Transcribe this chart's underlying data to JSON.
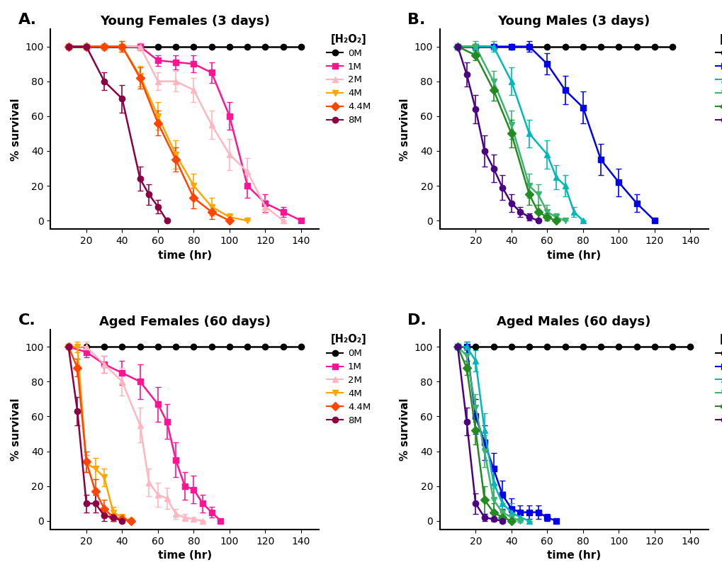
{
  "panels": [
    {
      "label": "A.",
      "title": "Young Females (3 days)",
      "series": [
        {
          "conc": "0M",
          "color": "#000000",
          "marker": "o",
          "x": [
            10,
            20,
            30,
            40,
            50,
            60,
            70,
            80,
            90,
            100,
            110,
            120,
            130,
            140
          ],
          "y": [
            100,
            100,
            100,
            100,
            100,
            100,
            100,
            100,
            100,
            100,
            100,
            100,
            100,
            100
          ],
          "yerr": [
            0,
            0,
            0,
            0,
            0,
            0,
            0,
            0,
            0,
            0,
            0,
            0,
            0,
            0
          ]
        },
        {
          "conc": "1M",
          "color": "#FF1493",
          "marker": "s",
          "x": [
            10,
            20,
            30,
            40,
            50,
            60,
            70,
            80,
            90,
            100,
            110,
            120,
            130,
            140
          ],
          "y": [
            100,
            100,
            100,
            100,
            100,
            92,
            91,
            90,
            85,
            60,
            20,
            10,
            5,
            0
          ],
          "yerr": [
            0,
            0,
            0,
            0,
            2,
            3,
            4,
            5,
            6,
            8,
            7,
            5,
            3,
            0
          ]
        },
        {
          "conc": "2M",
          "color": "#FFB6C1",
          "marker": "^",
          "x": [
            10,
            20,
            30,
            40,
            50,
            60,
            70,
            80,
            90,
            100,
            110,
            120,
            130
          ],
          "y": [
            100,
            100,
            100,
            100,
            100,
            80,
            80,
            75,
            55,
            38,
            28,
            8,
            0
          ],
          "yerr": [
            0,
            0,
            0,
            0,
            2,
            5,
            6,
            7,
            8,
            9,
            8,
            4,
            0
          ]
        },
        {
          "conc": "4M",
          "color": "#FFA500",
          "marker": "v",
          "x": [
            10,
            20,
            30,
            40,
            50,
            60,
            70,
            80,
            90,
            100,
            110
          ],
          "y": [
            100,
            100,
            100,
            100,
            83,
            60,
            38,
            20,
            8,
            2,
            0
          ],
          "yerr": [
            0,
            0,
            0,
            3,
            6,
            8,
            8,
            7,
            5,
            2,
            0
          ]
        },
        {
          "conc": "4.4M",
          "color": "#FF4500",
          "marker": "D",
          "x": [
            10,
            20,
            30,
            40,
            50,
            60,
            70,
            80,
            90,
            100
          ],
          "y": [
            100,
            100,
            100,
            100,
            82,
            56,
            35,
            13,
            5,
            0
          ],
          "yerr": [
            0,
            0,
            0,
            3,
            6,
            7,
            7,
            6,
            4,
            0
          ]
        },
        {
          "conc": "8M",
          "color": "#8B0045",
          "marker": "o",
          "x": [
            10,
            20,
            30,
            40,
            50,
            55,
            60,
            65
          ],
          "y": [
            100,
            100,
            80,
            70,
            24,
            15,
            8,
            0
          ],
          "yerr": [
            0,
            0,
            5,
            8,
            7,
            6,
            4,
            0
          ]
        }
      ]
    },
    {
      "label": "B.",
      "title": "Young Males (3 days)",
      "series": [
        {
          "conc": "0M",
          "color": "#000000",
          "marker": "o",
          "x": [
            10,
            20,
            30,
            40,
            50,
            60,
            70,
            80,
            90,
            100,
            110,
            120,
            130
          ],
          "y": [
            100,
            100,
            100,
            100,
            100,
            100,
            100,
            100,
            100,
            100,
            100,
            100,
            100
          ],
          "yerr": [
            0,
            0,
            0,
            0,
            0,
            0,
            0,
            0,
            0,
            0,
            0,
            0,
            0
          ]
        },
        {
          "conc": "1M",
          "color": "#0000EE",
          "marker": "s",
          "x": [
            10,
            20,
            30,
            40,
            50,
            60,
            70,
            80,
            90,
            100,
            110,
            120
          ],
          "y": [
            100,
            100,
            100,
            100,
            100,
            90,
            75,
            65,
            35,
            22,
            10,
            0
          ],
          "yerr": [
            0,
            0,
            0,
            0,
            3,
            6,
            8,
            9,
            9,
            8,
            5,
            0
          ]
        },
        {
          "conc": "2M",
          "color": "#00B8B8",
          "marker": "^",
          "x": [
            10,
            20,
            30,
            40,
            50,
            60,
            65,
            70,
            75,
            80
          ],
          "y": [
            100,
            100,
            100,
            80,
            50,
            38,
            25,
            20,
            5,
            0
          ],
          "yerr": [
            0,
            0,
            3,
            8,
            8,
            8,
            7,
            6,
            3,
            0
          ]
        },
        {
          "conc": "4M",
          "color": "#3CB371",
          "marker": "v",
          "x": [
            10,
            20,
            30,
            40,
            50,
            55,
            60,
            65,
            70
          ],
          "y": [
            100,
            100,
            80,
            55,
            20,
            15,
            5,
            2,
            0
          ],
          "yerr": [
            0,
            3,
            6,
            8,
            7,
            6,
            4,
            2,
            0
          ]
        },
        {
          "conc": "4.4M",
          "color": "#228B22",
          "marker": "D",
          "x": [
            10,
            20,
            30,
            40,
            50,
            55,
            60,
            65
          ],
          "y": [
            100,
            95,
            75,
            50,
            15,
            5,
            2,
            0
          ],
          "yerr": [
            0,
            3,
            6,
            8,
            6,
            4,
            2,
            0
          ]
        },
        {
          "conc": "8M",
          "color": "#4B0082",
          "marker": "o",
          "x": [
            10,
            15,
            20,
            25,
            30,
            35,
            40,
            45,
            50,
            55
          ],
          "y": [
            100,
            84,
            64,
            40,
            30,
            19,
            10,
            5,
            2,
            0
          ],
          "yerr": [
            0,
            7,
            8,
            9,
            8,
            7,
            5,
            3,
            2,
            0
          ]
        }
      ]
    },
    {
      "label": "C.",
      "title": "Aged Females (60 days)",
      "series": [
        {
          "conc": "0M",
          "color": "#000000",
          "marker": "o",
          "x": [
            10,
            20,
            30,
            40,
            50,
            60,
            70,
            80,
            90,
            100,
            110,
            120,
            130,
            140
          ],
          "y": [
            100,
            100,
            100,
            100,
            100,
            100,
            100,
            100,
            100,
            100,
            100,
            100,
            100,
            100
          ],
          "yerr": [
            0,
            0,
            0,
            0,
            0,
            0,
            0,
            0,
            0,
            0,
            0,
            0,
            0,
            0
          ]
        },
        {
          "conc": "1M",
          "color": "#FF1493",
          "marker": "s",
          "x": [
            10,
            20,
            30,
            40,
            50,
            60,
            65,
            70,
            75,
            80,
            85,
            90,
            95
          ],
          "y": [
            100,
            97,
            90,
            85,
            80,
            67,
            57,
            35,
            20,
            18,
            10,
            5,
            0
          ],
          "yerr": [
            0,
            3,
            5,
            7,
            10,
            10,
            10,
            10,
            8,
            8,
            5,
            3,
            0
          ]
        },
        {
          "conc": "2M",
          "color": "#FFB6C1",
          "marker": "^",
          "x": [
            10,
            20,
            30,
            40,
            50,
            55,
            60,
            65,
            70,
            75,
            80,
            85
          ],
          "y": [
            100,
            100,
            90,
            80,
            55,
            22,
            15,
            13,
            4,
            2,
            1,
            0
          ],
          "yerr": [
            0,
            3,
            5,
            8,
            10,
            8,
            7,
            6,
            3,
            2,
            1,
            0
          ]
        },
        {
          "conc": "4M",
          "color": "#FFA500",
          "marker": "v",
          "x": [
            10,
            15,
            20,
            25,
            30,
            35,
            40,
            45
          ],
          "y": [
            100,
            100,
            33,
            30,
            25,
            5,
            2,
            0
          ],
          "yerr": [
            0,
            3,
            5,
            6,
            5,
            3,
            2,
            0
          ]
        },
        {
          "conc": "4.4M",
          "color": "#FF4500",
          "marker": "D",
          "x": [
            10,
            15,
            20,
            25,
            30,
            35,
            40,
            45
          ],
          "y": [
            100,
            88,
            34,
            17,
            7,
            2,
            1,
            0
          ],
          "yerr": [
            0,
            5,
            6,
            7,
            5,
            2,
            1,
            0
          ]
        },
        {
          "conc": "8M",
          "color": "#8B0045",
          "marker": "o",
          "x": [
            10,
            15,
            20,
            25,
            30,
            35,
            40
          ],
          "y": [
            100,
            63,
            10,
            10,
            3,
            2,
            0
          ],
          "yerr": [
            0,
            8,
            5,
            5,
            3,
            2,
            0
          ]
        }
      ]
    },
    {
      "label": "D.",
      "title": "Aged Males (60 days)",
      "series": [
        {
          "conc": "0M",
          "color": "#000000",
          "marker": "o",
          "x": [
            10,
            20,
            30,
            40,
            50,
            60,
            70,
            80,
            90,
            100,
            110,
            120,
            130,
            140
          ],
          "y": [
            100,
            100,
            100,
            100,
            100,
            100,
            100,
            100,
            100,
            100,
            100,
            100,
            100,
            100
          ],
          "yerr": [
            0,
            0,
            0,
            0,
            0,
            0,
            0,
            0,
            0,
            0,
            0,
            0,
            0,
            0
          ]
        },
        {
          "conc": "1M",
          "color": "#0000EE",
          "marker": "s",
          "x": [
            10,
            15,
            20,
            25,
            30,
            35,
            40,
            45,
            50,
            55,
            60,
            65
          ],
          "y": [
            100,
            100,
            60,
            45,
            30,
            15,
            7,
            5,
            5,
            5,
            2,
            0
          ],
          "yerr": [
            0,
            3,
            10,
            10,
            9,
            8,
            6,
            4,
            4,
            4,
            2,
            0
          ]
        },
        {
          "conc": "2M",
          "color": "#00B8B8",
          "marker": "^",
          "x": [
            10,
            15,
            20,
            25,
            30,
            35,
            40,
            45,
            50
          ],
          "y": [
            100,
            100,
            92,
            52,
            22,
            10,
            5,
            2,
            0
          ],
          "yerr": [
            0,
            3,
            6,
            10,
            9,
            7,
            5,
            3,
            0
          ]
        },
        {
          "conc": "4M",
          "color": "#3CB371",
          "marker": "v",
          "x": [
            10,
            15,
            20,
            25,
            30,
            35,
            40,
            45
          ],
          "y": [
            100,
            95,
            65,
            40,
            12,
            5,
            2,
            0
          ],
          "yerr": [
            0,
            3,
            8,
            9,
            7,
            5,
            3,
            0
          ]
        },
        {
          "conc": "4.4M",
          "color": "#228B22",
          "marker": "D",
          "x": [
            10,
            15,
            20,
            25,
            30,
            35,
            40
          ],
          "y": [
            100,
            88,
            52,
            12,
            5,
            2,
            0
          ],
          "yerr": [
            0,
            4,
            8,
            8,
            5,
            3,
            0
          ]
        },
        {
          "conc": "8M",
          "color": "#4B0082",
          "marker": "o",
          "x": [
            10,
            15,
            20,
            25,
            30,
            35
          ],
          "y": [
            100,
            57,
            10,
            2,
            1,
            0
          ],
          "yerr": [
            0,
            8,
            6,
            2,
            1,
            0
          ]
        }
      ]
    }
  ],
  "xlim": [
    0,
    150
  ],
  "ylim": [
    -5,
    110
  ],
  "xticks": [
    20,
    40,
    60,
    80,
    100,
    120,
    140
  ],
  "yticks": [
    0,
    20,
    40,
    60,
    80,
    100
  ],
  "xlabel": "time (hr)",
  "ylabel": "% survival",
  "legend_title": "[H₂O₂]",
  "linewidth": 1.8,
  "markersize": 6,
  "capsize": 3,
  "elinewidth": 1.2
}
